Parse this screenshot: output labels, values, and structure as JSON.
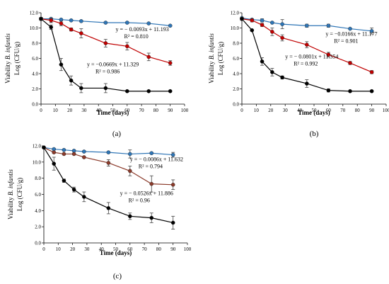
{
  "chart_data": [
    {
      "type": "scatter",
      "panel_label": "(a)",
      "xlabel": "Time (days)",
      "ylabel_line1": "Viability B. infantis",
      "ylabel_line2": "Log (CFU/g)",
      "xlim": [
        0,
        100
      ],
      "ylim": [
        0,
        12
      ],
      "xticks": [
        0,
        10,
        20,
        30,
        40,
        50,
        60,
        70,
        80,
        90,
        100
      ],
      "yticks": [
        0.0,
        2.0,
        4.0,
        6.0,
        8.0,
        10.0,
        12.0
      ],
      "x": [
        0,
        7,
        14,
        21,
        28,
        45,
        60,
        75,
        90
      ],
      "series": [
        {
          "color": "#2e75b6",
          "values": [
            11.2,
            11.2,
            11.1,
            11.0,
            10.9,
            10.7,
            10.7,
            10.6,
            10.3
          ],
          "errors": [
            0.1,
            0.1,
            0.1,
            0.1,
            0.1,
            0.1,
            0.1,
            0.1,
            0.1
          ]
        },
        {
          "color": "#c00000",
          "values": [
            11.2,
            11.0,
            10.6,
            9.8,
            9.3,
            8.0,
            7.6,
            6.2,
            5.4
          ],
          "errors": [
            0.2,
            0.3,
            0.3,
            0.2,
            0.6,
            0.5,
            0.5,
            0.5,
            0.3
          ]
        },
        {
          "color": "#000000",
          "values": [
            11.2,
            10.1,
            5.2,
            3.1,
            2.1,
            2.1,
            1.7,
            1.7,
            1.7
          ],
          "errors": [
            0.2,
            0.3,
            0.8,
            0.6,
            0.6,
            0.6,
            0.1,
            0.1,
            0.1
          ]
        }
      ],
      "annotations": [
        {
          "line1": "y = − 0.0093x + 11.193",
          "line2": "R² = 0.810",
          "x": 52,
          "y": 9.6
        },
        {
          "line1": "y = −0.0669x + 11.329",
          "line2": "R² = 0.986",
          "x": 32,
          "y": 5.0
        }
      ]
    },
    {
      "type": "scatter",
      "panel_label": "(b)",
      "xlabel": "Time (days)",
      "ylabel_line1": "Viability B. infantis",
      "ylabel_line2": "Log (CFU/g)",
      "xlim": [
        0,
        100
      ],
      "ylim": [
        0,
        12
      ],
      "xticks": [
        0,
        10,
        20,
        30,
        40,
        50,
        60,
        70,
        80,
        90,
        100
      ],
      "yticks": [
        0.0,
        2.0,
        4.0,
        6.0,
        8.0,
        10.0,
        12.0
      ],
      "x": [
        0,
        7,
        14,
        21,
        28,
        45,
        60,
        75,
        90
      ],
      "series": [
        {
          "color": "#2e75b6",
          "values": [
            11.3,
            11.1,
            11.0,
            10.7,
            10.5,
            10.3,
            10.3,
            9.9,
            9.6
          ],
          "errors": [
            0.1,
            0.1,
            0.2,
            0.1,
            0.6,
            0.2,
            0.2,
            0.1,
            0.4
          ]
        },
        {
          "color": "#c00000",
          "values": [
            11.2,
            11.0,
            10.4,
            9.5,
            8.7,
            7.8,
            6.5,
            5.4,
            4.2
          ],
          "errors": [
            0.2,
            0.2,
            0.2,
            0.5,
            0.4,
            0.4,
            0.3,
            0.2,
            0.2
          ]
        },
        {
          "color": "#000000",
          "values": [
            11.2,
            9.7,
            5.6,
            4.2,
            3.5,
            2.7,
            1.8,
            1.7,
            1.7
          ],
          "errors": [
            0.2,
            0.1,
            0.5,
            0.5,
            0.2,
            0.5,
            0.2,
            0.1,
            0.1
          ]
        }
      ],
      "annotations": [
        {
          "line1": "y = −0.0166x + 11.177",
          "line2": "R² = 0.901",
          "x": 58,
          "y": 9.0
        },
        {
          "line1": "y = − 0.0801x + 11.354",
          "line2": "R² = 0.992",
          "x": 30,
          "y": 6.0
        }
      ]
    },
    {
      "type": "scatter",
      "panel_label": "(c)",
      "xlabel": "Time (days)",
      "ylabel_line1": "Viability B. infantis",
      "ylabel_line2": "Log (CFU/g)",
      "xlim": [
        0,
        100
      ],
      "ylim": [
        0,
        12
      ],
      "xticks": [
        0,
        10,
        20,
        30,
        40,
        50,
        60,
        70,
        80,
        90,
        100
      ],
      "yticks": [
        0.0,
        2.0,
        4.0,
        6.0,
        8.0,
        10.0,
        12.0
      ],
      "x": [
        0,
        7,
        14,
        21,
        28,
        45,
        60,
        75,
        90
      ],
      "series": [
        {
          "color": "#2e75b6",
          "values": [
            11.8,
            11.6,
            11.5,
            11.4,
            11.3,
            11.2,
            11.0,
            11.1,
            10.9
          ],
          "errors": [
            0.1,
            0.1,
            0.1,
            0.1,
            0.1,
            0.1,
            0.5,
            0.1,
            0.3
          ]
        },
        {
          "color": "#8b3a2a",
          "values": [
            11.8,
            11.2,
            11.0,
            11.0,
            10.6,
            9.9,
            8.9,
            7.3,
            7.2
          ],
          "errors": [
            0.1,
            0.1,
            0.1,
            0.1,
            0.1,
            0.4,
            0.6,
            1.0,
            0.6
          ]
        },
        {
          "color": "#000000",
          "values": [
            11.8,
            9.8,
            7.7,
            6.6,
            5.7,
            4.3,
            3.3,
            3.1,
            2.5
          ],
          "errors": [
            0.1,
            0.8,
            0.2,
            0.3,
            0.6,
            0.7,
            0.4,
            0.6,
            0.8
          ]
        }
      ],
      "annotations": [
        {
          "line1": "y = − 0.0086x + 11.632",
          "line2": "R² = 0.794",
          "x": 60,
          "y": 10.1
        },
        {
          "line1": "y = − 0.0526x + 11.886",
          "line2": "R² = 0.96",
          "x": 53,
          "y": 5.9
        }
      ]
    }
  ]
}
